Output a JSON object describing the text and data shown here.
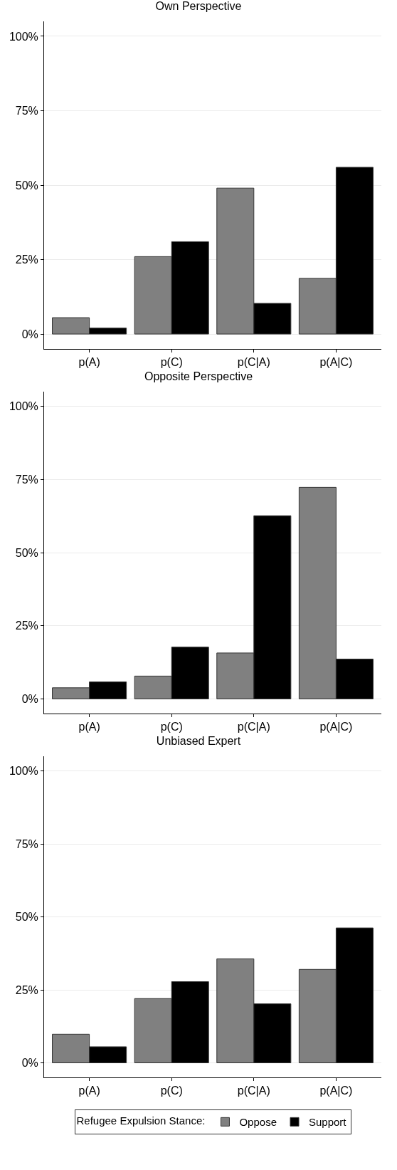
{
  "chart_data": [
    {
      "type": "bar",
      "title": "Own Perspective",
      "categories": [
        "p(A)",
        "p(C)",
        "p(C|A)",
        "p(A|C)"
      ],
      "series": [
        {
          "color": "#808080",
          "values": [
            5.5,
            26,
            49,
            18.7
          ]
        },
        {
          "color": "#000000",
          "values": [
            2,
            31,
            10.3,
            56
          ]
        }
      ],
      "ylim": [
        -5,
        105
      ],
      "yticks": [
        {
          "value": 0,
          "label": "0%"
        },
        {
          "value": 25,
          "label": "25%"
        },
        {
          "value": 50,
          "label": "50%"
        },
        {
          "value": 75,
          "label": "75%"
        },
        {
          "value": 100,
          "label": "100%"
        }
      ],
      "grid": "y"
    },
    {
      "type": "bar",
      "title": "Opposite Perspective",
      "categories": [
        "p(A)",
        "p(C)",
        "p(C|A)",
        "p(A|C)"
      ],
      "series": [
        {
          "color": "#808080",
          "values": [
            3.8,
            7.8,
            15.7,
            72.3
          ]
        },
        {
          "color": "#000000",
          "values": [
            5.8,
            17.7,
            62.6,
            13.6
          ]
        }
      ],
      "ylim": [
        -5,
        105
      ],
      "yticks": [
        {
          "value": 0,
          "label": "0%"
        },
        {
          "value": 25,
          "label": "25%"
        },
        {
          "value": 50,
          "label": "50%"
        },
        {
          "value": 75,
          "label": "75%"
        },
        {
          "value": 100,
          "label": "100%"
        }
      ],
      "grid": "y"
    },
    {
      "type": "bar",
      "title": "Unbiased Expert",
      "categories": [
        "p(A)",
        "p(C)",
        "p(C|A)",
        "p(A|C)"
      ],
      "series": [
        {
          "name": "Oppose",
          "color": "#808080",
          "values": [
            9.8,
            22,
            35.6,
            32
          ]
        },
        {
          "name": "Support",
          "color": "#000000",
          "values": [
            5.5,
            27.8,
            20.2,
            46.2
          ]
        }
      ],
      "ylim": [
        -5,
        105
      ],
      "yticks": [
        {
          "value": 0,
          "label": "0%"
        },
        {
          "value": 25,
          "label": "25%"
        },
        {
          "value": 50,
          "label": "50%"
        },
        {
          "value": 75,
          "label": "75%"
        },
        {
          "value": 100,
          "label": "100%"
        }
      ],
      "grid": "y",
      "legend": "bottom",
      "legend_title": "Refugee Expulsion Stance:"
    }
  ]
}
